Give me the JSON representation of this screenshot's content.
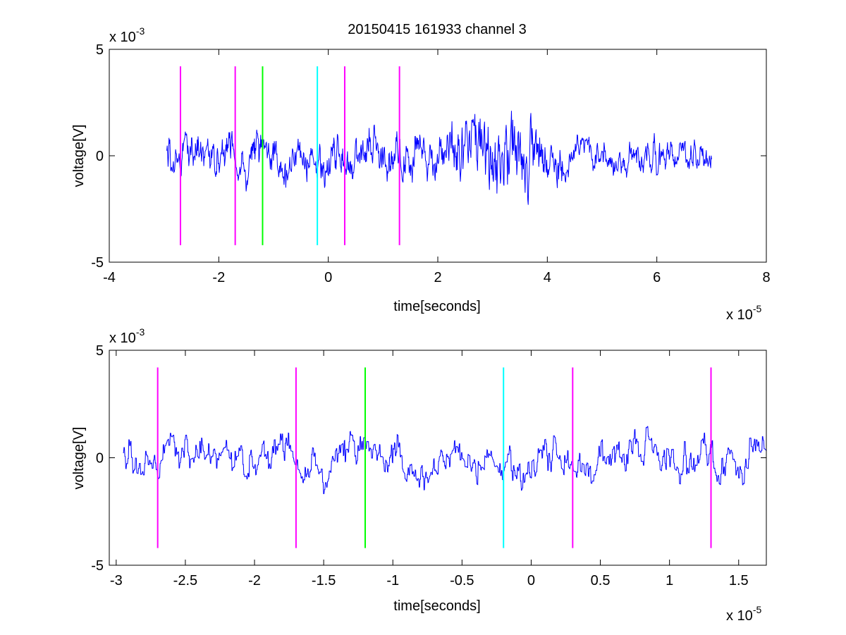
{
  "figure": {
    "title": "20150415 161933 channel 3"
  },
  "chart_data": [
    {
      "type": "line",
      "title": "20150415 161933 channel 3",
      "xlabel": "time[seconds]",
      "ylabel": "voltage[V]",
      "x_multiplier": "x 10",
      "x_exponent": "-5",
      "y_multiplier": "x 10",
      "y_exponent": "-3",
      "xlim": [
        -4,
        8
      ],
      "ylim": [
        -5,
        5
      ],
      "xticks": [
        -4,
        -2,
        0,
        2,
        4,
        6,
        8
      ],
      "xtick_labels": [
        "-4",
        "-2",
        "0",
        "2",
        "4",
        "6",
        "8"
      ],
      "yticks": [
        -5,
        0,
        5
      ],
      "ytick_labels": [
        "-5",
        "0",
        "5"
      ],
      "signal_x_range": [
        -2.95,
        7.0
      ],
      "signal_color": "#0000ff",
      "markers": [
        {
          "x": -2.7,
          "y_range": [
            -4.2,
            4.2
          ],
          "color": "#ff00ff"
        },
        {
          "x": -1.7,
          "y_range": [
            -4.2,
            4.2
          ],
          "color": "#ff00ff"
        },
        {
          "x": -1.2,
          "y_range": [
            -4.2,
            4.2
          ],
          "color": "#00ff00"
        },
        {
          "x": -0.2,
          "y_range": [
            -4.2,
            4.2
          ],
          "color": "#00ffff"
        },
        {
          "x": 0.3,
          "y_range": [
            -4.2,
            4.2
          ],
          "color": "#ff00ff"
        },
        {
          "x": 1.3,
          "y_range": [
            -4.2,
            4.2
          ],
          "color": "#ff00ff"
        }
      ]
    },
    {
      "type": "line",
      "title": "",
      "xlabel": "time[seconds]",
      "ylabel": "voltage[V]",
      "x_multiplier": "x 10",
      "x_exponent": "-5",
      "y_multiplier": "x 10",
      "y_exponent": "-3",
      "xlim": [
        -3.05,
        1.7
      ],
      "ylim": [
        -5,
        5
      ],
      "xticks": [
        -3,
        -2.5,
        -2,
        -1.5,
        -1,
        -0.5,
        0,
        0.5,
        1,
        1.5
      ],
      "xtick_labels": [
        "-3",
        "-2.5",
        "-2",
        "-1.5",
        "-1",
        "-0.5",
        "0",
        "0.5",
        "1",
        "1.5"
      ],
      "yticks": [
        -5,
        0,
        5
      ],
      "ytick_labels": [
        "-5",
        "0",
        "5"
      ],
      "signal_x_range": [
        -2.95,
        1.7
      ],
      "signal_color": "#0000ff",
      "markers": [
        {
          "x": -2.7,
          "y_range": [
            -4.2,
            4.2
          ],
          "color": "#ff00ff"
        },
        {
          "x": -1.7,
          "y_range": [
            -4.2,
            4.2
          ],
          "color": "#ff00ff"
        },
        {
          "x": -1.2,
          "y_range": [
            -4.2,
            4.2
          ],
          "color": "#00ff00"
        },
        {
          "x": -0.2,
          "y_range": [
            -4.2,
            4.2
          ],
          "color": "#00ffff"
        },
        {
          "x": 0.3,
          "y_range": [
            -4.2,
            4.2
          ],
          "color": "#ff00ff"
        },
        {
          "x": 1.3,
          "y_range": [
            -4.2,
            4.2
          ],
          "color": "#ff00ff"
        }
      ]
    }
  ]
}
